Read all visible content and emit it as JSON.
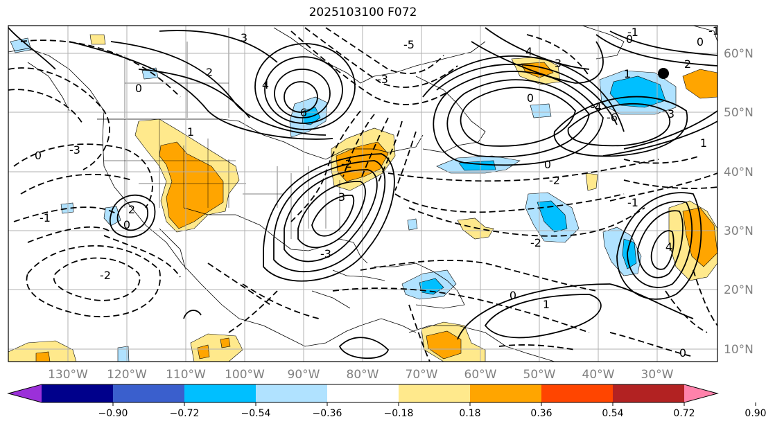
{
  "title": "2025103100 F072",
  "map": {
    "lon_labels": [
      "130°W",
      "120°W",
      "110°W",
      "100°W",
      "90°W",
      "80°W",
      "70°W",
      "60°W",
      "50°W",
      "40°W",
      "30°W"
    ],
    "lat_labels": [
      "60°N",
      "50°N",
      "40°N",
      "30°N",
      "20°N",
      "10°N"
    ],
    "label_color": "#808080"
  },
  "contour_labels": [
    {
      "text": "3"
    },
    {
      "text": "2"
    },
    {
      "text": "4"
    },
    {
      "text": "6"
    },
    {
      "text": "1"
    },
    {
      "text": "0"
    },
    {
      "text": "-3"
    },
    {
      "text": "-1"
    },
    {
      "text": "0"
    },
    {
      "text": "2"
    },
    {
      "text": "0"
    },
    {
      "text": "-2"
    },
    {
      "text": "-3"
    },
    {
      "text": "3"
    },
    {
      "text": "-2"
    },
    {
      "text": "4"
    },
    {
      "text": "3"
    },
    {
      "text": "0"
    },
    {
      "text": "-4"
    },
    {
      "text": "-5"
    },
    {
      "text": "-3"
    },
    {
      "text": "-1"
    },
    {
      "text": "0"
    },
    {
      "text": "0"
    },
    {
      "text": "-2"
    },
    {
      "text": "0"
    },
    {
      "text": "-1"
    },
    {
      "text": "2"
    },
    {
      "text": "-6"
    },
    {
      "text": "4"
    },
    {
      "text": "3"
    },
    {
      "text": "1"
    },
    {
      "text": "-1"
    },
    {
      "text": "1"
    },
    {
      "text": "-2"
    },
    {
      "text": "0"
    },
    {
      "text": "1"
    },
    {
      "text": "0"
    }
  ],
  "colorbar": {
    "ticks": [
      "−0.90",
      "−0.72",
      "−0.54",
      "−0.36",
      "−0.18",
      "0.18",
      "0.36",
      "0.54",
      "0.72",
      "0.90"
    ],
    "colors": [
      "#9b30d9",
      "#00008b",
      "#3a5fcd",
      "#00bfff",
      "#b0e2ff",
      "#ffffff",
      "#ffe98c",
      "#ffa500",
      "#ff4500",
      "#b22222",
      "#ff82ab"
    ]
  }
}
